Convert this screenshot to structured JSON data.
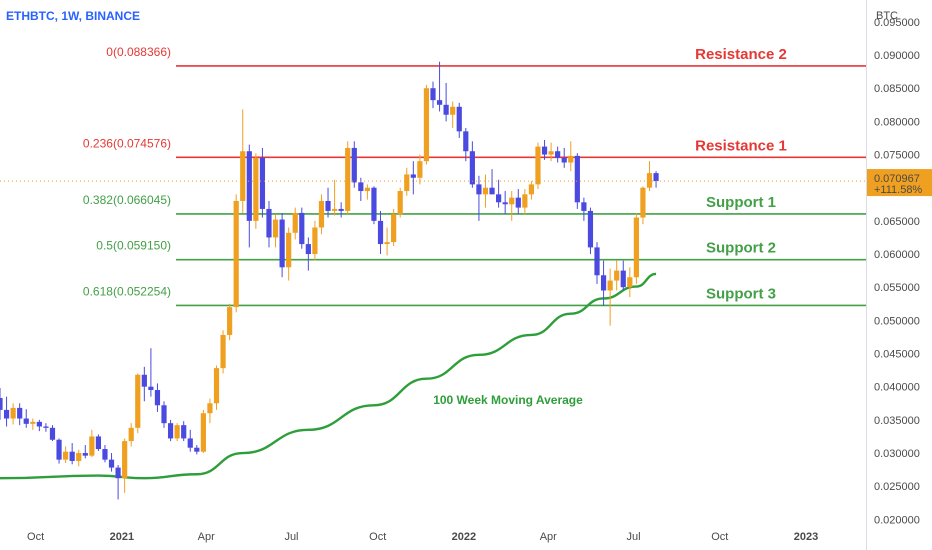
{
  "header": {
    "symbol": "ETHBTC, 1W, BINANCE"
  },
  "price_axis": {
    "currency": "BTC",
    "current_price": "0.070967",
    "current_change": "+111.58%",
    "current_color": "#f0a020"
  },
  "colors": {
    "bull": "#f0a020",
    "bear": "#4a4ae0",
    "resistance": "#e53935",
    "support": "#43a047",
    "moving_average": "#2e9e3a",
    "fib_resistance_text": "#e53935",
    "fib_support_text": "#43a047"
  },
  "chart_data": {
    "type": "candlestick",
    "timeframe": "1W",
    "y_axis": {
      "range": [
        0.0196,
        0.0983
      ],
      "ticks": [
        "0.095000",
        "0.090000",
        "0.085000",
        "0.080000",
        "0.075000",
        "0.070000",
        "0.065000",
        "0.060000",
        "0.055000",
        "0.050000",
        "0.045000",
        "0.040000",
        "0.035000",
        "0.030000",
        "0.025000",
        "0.020000"
      ]
    },
    "x_axis": {
      "range": [
        "2020-08-24",
        "2023-03-06"
      ],
      "ticks": [
        {
          "label": "Oct",
          "date": "2020-10-01",
          "bold": false
        },
        {
          "label": "2021",
          "date": "2021-01-01",
          "bold": true
        },
        {
          "label": "Apr",
          "date": "2021-04-01",
          "bold": false
        },
        {
          "label": "Jul",
          "date": "2021-07-01",
          "bold": false
        },
        {
          "label": "Oct",
          "date": "2021-10-01",
          "bold": false
        },
        {
          "label": "2022",
          "date": "2022-01-01",
          "bold": true
        },
        {
          "label": "Apr",
          "date": "2022-04-01",
          "bold": false
        },
        {
          "label": "Jul",
          "date": "2022-07-01",
          "bold": false
        },
        {
          "label": "Oct",
          "date": "2022-10-01",
          "bold": false
        },
        {
          "label": "2023",
          "date": "2023-01-01",
          "bold": true
        }
      ]
    },
    "fib_levels": [
      {
        "label": "0(0.088366)",
        "value": 0.088366,
        "zone": "Resistance 2",
        "kind": "resistance"
      },
      {
        "label": "0.236(0.074576)",
        "value": 0.074576,
        "zone": "Resistance 1",
        "kind": "resistance"
      },
      {
        "label": "0.382(0.066045)",
        "value": 0.066045,
        "zone": "Support 1",
        "kind": "support"
      },
      {
        "label": "0.5(0.059150)",
        "value": 0.05915,
        "zone": "Support 2",
        "kind": "support"
      },
      {
        "label": "0.618(0.052254)",
        "value": 0.052254,
        "zone": "Support 3",
        "kind": "support"
      }
    ],
    "moving_average": {
      "label": "100 Week Moving Average",
      "points": [
        {
          "date": "2020-08-24",
          "value": 0.0262
        },
        {
          "date": "2020-12-07",
          "value": 0.0266
        },
        {
          "date": "2021-01-25",
          "value": 0.0262
        },
        {
          "date": "2021-03-22",
          "value": 0.0268
        },
        {
          "date": "2021-05-10",
          "value": 0.03
        },
        {
          "date": "2021-07-19",
          "value": 0.0335
        },
        {
          "date": "2021-09-27",
          "value": 0.0372
        },
        {
          "date": "2021-11-22",
          "value": 0.0412
        },
        {
          "date": "2022-01-17",
          "value": 0.0448
        },
        {
          "date": "2022-03-14",
          "value": 0.0478
        },
        {
          "date": "2022-04-25",
          "value": 0.051
        },
        {
          "date": "2022-05-30",
          "value": 0.0533
        },
        {
          "date": "2022-07-04",
          "value": 0.0551
        },
        {
          "date": "2022-07-25",
          "value": 0.057
        }
      ]
    },
    "candles": [
      {
        "d": "2020-08-24",
        "o": 0.0383,
        "h": 0.0398,
        "l": 0.035,
        "c": 0.0365
      },
      {
        "d": "2020-08-31",
        "o": 0.0365,
        "h": 0.0385,
        "l": 0.034,
        "c": 0.0352
      },
      {
        "d": "2020-09-07",
        "o": 0.0352,
        "h": 0.0375,
        "l": 0.0343,
        "c": 0.0368
      },
      {
        "d": "2020-09-14",
        "o": 0.0368,
        "h": 0.0375,
        "l": 0.0342,
        "c": 0.0352
      },
      {
        "d": "2020-09-21",
        "o": 0.0352,
        "h": 0.0366,
        "l": 0.0338,
        "c": 0.0344
      },
      {
        "d": "2020-09-28",
        "o": 0.0344,
        "h": 0.0352,
        "l": 0.0335,
        "c": 0.0347
      },
      {
        "d": "2020-10-05",
        "o": 0.0347,
        "h": 0.035,
        "l": 0.0333,
        "c": 0.034
      },
      {
        "d": "2020-10-12",
        "o": 0.034,
        "h": 0.0345,
        "l": 0.0332,
        "c": 0.0338
      },
      {
        "d": "2020-10-19",
        "o": 0.0338,
        "h": 0.0342,
        "l": 0.0318,
        "c": 0.032
      },
      {
        "d": "2020-10-26",
        "o": 0.032,
        "h": 0.0322,
        "l": 0.0284,
        "c": 0.029
      },
      {
        "d": "2020-11-02",
        "o": 0.029,
        "h": 0.031,
        "l": 0.0285,
        "c": 0.0302
      },
      {
        "d": "2020-11-09",
        "o": 0.0302,
        "h": 0.0315,
        "l": 0.0283,
        "c": 0.0288
      },
      {
        "d": "2020-11-16",
        "o": 0.0288,
        "h": 0.0305,
        "l": 0.028,
        "c": 0.03
      },
      {
        "d": "2020-11-23",
        "o": 0.03,
        "h": 0.0312,
        "l": 0.0292,
        "c": 0.0296
      },
      {
        "d": "2020-11-30",
        "o": 0.0296,
        "h": 0.0335,
        "l": 0.0294,
        "c": 0.0325
      },
      {
        "d": "2020-12-07",
        "o": 0.0325,
        "h": 0.0328,
        "l": 0.0303,
        "c": 0.0306
      },
      {
        "d": "2020-12-14",
        "o": 0.0306,
        "h": 0.0312,
        "l": 0.0286,
        "c": 0.029
      },
      {
        "d": "2020-12-21",
        "o": 0.029,
        "h": 0.03,
        "l": 0.0272,
        "c": 0.0278
      },
      {
        "d": "2020-12-28",
        "o": 0.0278,
        "h": 0.0282,
        "l": 0.023,
        "c": 0.0262
      },
      {
        "d": "2021-01-04",
        "o": 0.0262,
        "h": 0.0322,
        "l": 0.024,
        "c": 0.0318
      },
      {
        "d": "2021-01-11",
        "o": 0.0318,
        "h": 0.0345,
        "l": 0.031,
        "c": 0.0338
      },
      {
        "d": "2021-01-18",
        "o": 0.0338,
        "h": 0.042,
        "l": 0.033,
        "c": 0.0418
      },
      {
        "d": "2021-01-25",
        "o": 0.0418,
        "h": 0.043,
        "l": 0.0378,
        "c": 0.04
      },
      {
        "d": "2021-02-01",
        "o": 0.04,
        "h": 0.0458,
        "l": 0.0385,
        "c": 0.0395
      },
      {
        "d": "2021-02-08",
        "o": 0.0395,
        "h": 0.0405,
        "l": 0.0362,
        "c": 0.0372
      },
      {
        "d": "2021-02-15",
        "o": 0.0372,
        "h": 0.0378,
        "l": 0.0338,
        "c": 0.0345
      },
      {
        "d": "2021-02-22",
        "o": 0.0345,
        "h": 0.035,
        "l": 0.0318,
        "c": 0.0322
      },
      {
        "d": "2021-03-01",
        "o": 0.0322,
        "h": 0.0345,
        "l": 0.0318,
        "c": 0.0342
      },
      {
        "d": "2021-03-08",
        "o": 0.0342,
        "h": 0.0348,
        "l": 0.0318,
        "c": 0.0322
      },
      {
        "d": "2021-03-15",
        "o": 0.0322,
        "h": 0.0335,
        "l": 0.0302,
        "c": 0.0308
      },
      {
        "d": "2021-03-22",
        "o": 0.0308,
        "h": 0.0312,
        "l": 0.0298,
        "c": 0.0302
      },
      {
        "d": "2021-03-29",
        "o": 0.0302,
        "h": 0.0365,
        "l": 0.03,
        "c": 0.036
      },
      {
        "d": "2021-04-05",
        "o": 0.036,
        "h": 0.0382,
        "l": 0.0345,
        "c": 0.0375
      },
      {
        "d": "2021-04-12",
        "o": 0.0375,
        "h": 0.0432,
        "l": 0.0365,
        "c": 0.0428
      },
      {
        "d": "2021-04-19",
        "o": 0.0428,
        "h": 0.0485,
        "l": 0.042,
        "c": 0.0478
      },
      {
        "d": "2021-04-26",
        "o": 0.0478,
        "h": 0.0525,
        "l": 0.047,
        "c": 0.052
      },
      {
        "d": "2021-05-03",
        "o": 0.052,
        "h": 0.069,
        "l": 0.0512,
        "c": 0.068
      },
      {
        "d": "2021-05-10",
        "o": 0.068,
        "h": 0.0818,
        "l": 0.0662,
        "c": 0.0755
      },
      {
        "d": "2021-05-17",
        "o": 0.0755,
        "h": 0.0765,
        "l": 0.061,
        "c": 0.065
      },
      {
        "d": "2021-05-24",
        "o": 0.065,
        "h": 0.0752,
        "l": 0.0638,
        "c": 0.0745
      },
      {
        "d": "2021-05-31",
        "o": 0.0745,
        "h": 0.076,
        "l": 0.0655,
        "c": 0.0668
      },
      {
        "d": "2021-06-07",
        "o": 0.0668,
        "h": 0.068,
        "l": 0.061,
        "c": 0.0625
      },
      {
        "d": "2021-06-14",
        "o": 0.0625,
        "h": 0.066,
        "l": 0.061,
        "c": 0.0652
      },
      {
        "d": "2021-06-21",
        "o": 0.0652,
        "h": 0.0662,
        "l": 0.0565,
        "c": 0.058
      },
      {
        "d": "2021-06-28",
        "o": 0.058,
        "h": 0.064,
        "l": 0.056,
        "c": 0.0632
      },
      {
        "d": "2021-07-05",
        "o": 0.0632,
        "h": 0.067,
        "l": 0.0622,
        "c": 0.0662
      },
      {
        "d": "2021-07-12",
        "o": 0.0662,
        "h": 0.067,
        "l": 0.0608,
        "c": 0.0615
      },
      {
        "d": "2021-07-19",
        "o": 0.0615,
        "h": 0.0625,
        "l": 0.0575,
        "c": 0.06
      },
      {
        "d": "2021-07-26",
        "o": 0.06,
        "h": 0.065,
        "l": 0.059,
        "c": 0.064
      },
      {
        "d": "2021-08-02",
        "o": 0.064,
        "h": 0.069,
        "l": 0.063,
        "c": 0.068
      },
      {
        "d": "2021-08-09",
        "o": 0.068,
        "h": 0.07,
        "l": 0.0655,
        "c": 0.0665
      },
      {
        "d": "2021-08-16",
        "o": 0.0665,
        "h": 0.0712,
        "l": 0.0658,
        "c": 0.0668
      },
      {
        "d": "2021-08-23",
        "o": 0.0668,
        "h": 0.0678,
        "l": 0.0655,
        "c": 0.0665
      },
      {
        "d": "2021-08-30",
        "o": 0.0665,
        "h": 0.077,
        "l": 0.066,
        "c": 0.076
      },
      {
        "d": "2021-09-06",
        "o": 0.076,
        "h": 0.077,
        "l": 0.07,
        "c": 0.0708
      },
      {
        "d": "2021-09-13",
        "o": 0.0708,
        "h": 0.0715,
        "l": 0.068,
        "c": 0.0695
      },
      {
        "d": "2021-09-20",
        "o": 0.0695,
        "h": 0.0705,
        "l": 0.0682,
        "c": 0.07
      },
      {
        "d": "2021-09-27",
        "o": 0.07,
        "h": 0.0702,
        "l": 0.0645,
        "c": 0.065
      },
      {
        "d": "2021-10-04",
        "o": 0.065,
        "h": 0.0665,
        "l": 0.06,
        "c": 0.0615
      },
      {
        "d": "2021-10-11",
        "o": 0.0615,
        "h": 0.064,
        "l": 0.0598,
        "c": 0.0618
      },
      {
        "d": "2021-10-18",
        "o": 0.0618,
        "h": 0.0668,
        "l": 0.0612,
        "c": 0.066
      },
      {
        "d": "2021-10-25",
        "o": 0.066,
        "h": 0.07,
        "l": 0.0655,
        "c": 0.0695
      },
      {
        "d": "2021-11-01",
        "o": 0.0695,
        "h": 0.073,
        "l": 0.0688,
        "c": 0.072
      },
      {
        "d": "2021-11-08",
        "o": 0.072,
        "h": 0.074,
        "l": 0.069,
        "c": 0.0715
      },
      {
        "d": "2021-11-15",
        "o": 0.0715,
        "h": 0.075,
        "l": 0.0705,
        "c": 0.074
      },
      {
        "d": "2021-11-22",
        "o": 0.074,
        "h": 0.0855,
        "l": 0.0735,
        "c": 0.085
      },
      {
        "d": "2021-11-29",
        "o": 0.085,
        "h": 0.086,
        "l": 0.082,
        "c": 0.0832
      },
      {
        "d": "2021-12-06",
        "o": 0.0832,
        "h": 0.089,
        "l": 0.0815,
        "c": 0.0825
      },
      {
        "d": "2021-12-13",
        "o": 0.0825,
        "h": 0.0858,
        "l": 0.08,
        "c": 0.081
      },
      {
        "d": "2021-12-20",
        "o": 0.081,
        "h": 0.083,
        "l": 0.079,
        "c": 0.0822
      },
      {
        "d": "2021-12-27",
        "o": 0.0822,
        "h": 0.0828,
        "l": 0.0775,
        "c": 0.0785
      },
      {
        "d": "2022-01-03",
        "o": 0.0785,
        "h": 0.079,
        "l": 0.074,
        "c": 0.0755
      },
      {
        "d": "2022-01-10",
        "o": 0.0755,
        "h": 0.077,
        "l": 0.07,
        "c": 0.0705
      },
      {
        "d": "2022-01-17",
        "o": 0.0705,
        "h": 0.0718,
        "l": 0.065,
        "c": 0.069
      },
      {
        "d": "2022-01-24",
        "o": 0.069,
        "h": 0.072,
        "l": 0.067,
        "c": 0.07
      },
      {
        "d": "2022-01-31",
        "o": 0.07,
        "h": 0.0728,
        "l": 0.069,
        "c": 0.069
      },
      {
        "d": "2022-02-07",
        "o": 0.069,
        "h": 0.0712,
        "l": 0.067,
        "c": 0.0678
      },
      {
        "d": "2022-02-14",
        "o": 0.0678,
        "h": 0.0695,
        "l": 0.066,
        "c": 0.0675
      },
      {
        "d": "2022-02-21",
        "o": 0.0675,
        "h": 0.0695,
        "l": 0.065,
        "c": 0.0685
      },
      {
        "d": "2022-02-28",
        "o": 0.0685,
        "h": 0.0698,
        "l": 0.066,
        "c": 0.067
      },
      {
        "d": "2022-03-07",
        "o": 0.067,
        "h": 0.0698,
        "l": 0.066,
        "c": 0.069
      },
      {
        "d": "2022-03-14",
        "o": 0.069,
        "h": 0.071,
        "l": 0.0682,
        "c": 0.0705
      },
      {
        "d": "2022-03-21",
        "o": 0.0705,
        "h": 0.0768,
        "l": 0.0698,
        "c": 0.0762
      },
      {
        "d": "2022-03-28",
        "o": 0.0762,
        "h": 0.0772,
        "l": 0.0742,
        "c": 0.075
      },
      {
        "d": "2022-04-04",
        "o": 0.075,
        "h": 0.0768,
        "l": 0.074,
        "c": 0.0755
      },
      {
        "d": "2022-04-11",
        "o": 0.0755,
        "h": 0.0762,
        "l": 0.0738,
        "c": 0.0745
      },
      {
        "d": "2022-04-18",
        "o": 0.0745,
        "h": 0.076,
        "l": 0.073,
        "c": 0.0738
      },
      {
        "d": "2022-04-25",
        "o": 0.0738,
        "h": 0.077,
        "l": 0.0725,
        "c": 0.0748
      },
      {
        "d": "2022-05-02",
        "o": 0.0748,
        "h": 0.0752,
        "l": 0.0668,
        "c": 0.0678
      },
      {
        "d": "2022-05-09",
        "o": 0.0678,
        "h": 0.0685,
        "l": 0.065,
        "c": 0.0665
      },
      {
        "d": "2022-05-16",
        "o": 0.0665,
        "h": 0.067,
        "l": 0.06,
        "c": 0.061
      },
      {
        "d": "2022-05-23",
        "o": 0.061,
        "h": 0.0618,
        "l": 0.0555,
        "c": 0.0568
      },
      {
        "d": "2022-05-30",
        "o": 0.0568,
        "h": 0.059,
        "l": 0.0522,
        "c": 0.0545
      },
      {
        "d": "2022-06-06",
        "o": 0.0545,
        "h": 0.0578,
        "l": 0.0492,
        "c": 0.056
      },
      {
        "d": "2022-06-13",
        "o": 0.056,
        "h": 0.059,
        "l": 0.0545,
        "c": 0.0575
      },
      {
        "d": "2022-06-20",
        "o": 0.0575,
        "h": 0.059,
        "l": 0.0545,
        "c": 0.055
      },
      {
        "d": "2022-06-27",
        "o": 0.055,
        "h": 0.058,
        "l": 0.0535,
        "c": 0.0565
      },
      {
        "d": "2022-07-04",
        "o": 0.0565,
        "h": 0.0662,
        "l": 0.0555,
        "c": 0.0655
      },
      {
        "d": "2022-07-11",
        "o": 0.0655,
        "h": 0.0702,
        "l": 0.0645,
        "c": 0.07
      },
      {
        "d": "2022-07-18",
        "o": 0.07,
        "h": 0.074,
        "l": 0.0695,
        "c": 0.0722
      },
      {
        "d": "2022-07-25",
        "o": 0.0722,
        "h": 0.0725,
        "l": 0.07,
        "c": 0.071
      }
    ]
  }
}
